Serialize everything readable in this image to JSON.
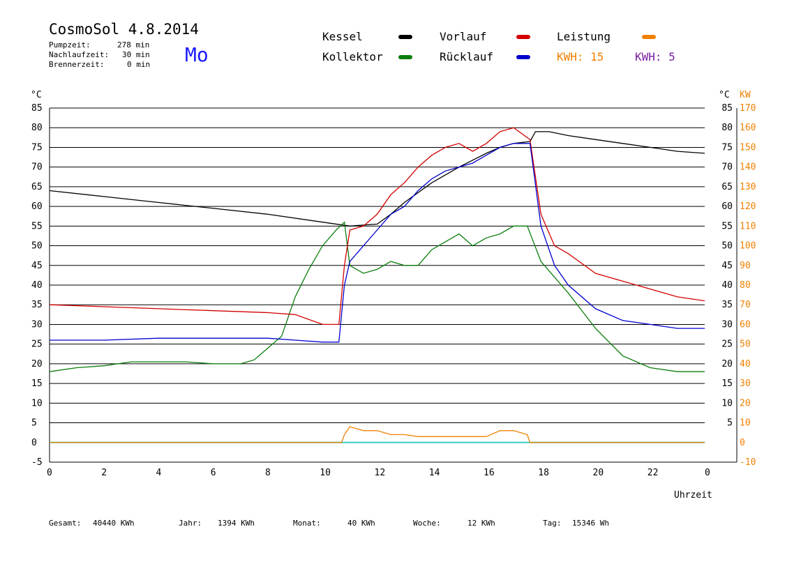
{
  "header": {
    "title": "CosmoSol 4.8.2014",
    "day": "Mo",
    "stats": [
      {
        "label": "Pumpzeit:",
        "value": "278 min"
      },
      {
        "label": "Nachlaufzeit:",
        "value": "30 min"
      },
      {
        "label": "Brennerzeit:",
        "value": "0 min"
      }
    ]
  },
  "legend": {
    "kessel": "Kessel",
    "kollektor": "Kollektor",
    "vorlauf": "Vorlauf",
    "ruecklauf": "Rücklauf",
    "leistung": "Leistung",
    "kwh1": "KWH: 15",
    "kwh2": "KWH: 5"
  },
  "colors": {
    "kessel": "#000000",
    "kollektor": "#0a7d0a",
    "vorlauf": "#d40000",
    "ruecklauf": "#0000cc",
    "leistung": "#f08000",
    "leistung2": "#7a1fa2",
    "baseline": "#33cccc",
    "day": "#1a1aff"
  },
  "footer": [
    {
      "label": "Gesamt:",
      "value": "40440 KWh"
    },
    {
      "label": "Jahr:",
      "value": "1394 KWh"
    },
    {
      "label": "Monat:",
      "value": "40 KWh"
    },
    {
      "label": "Woche:",
      "value": "12 KWh"
    },
    {
      "label": "Tag:",
      "value": "15346 Wh"
    }
  ],
  "chart_data": {
    "type": "line",
    "xlabel": "Uhrzeit",
    "ylabel_left": "°C",
    "ylabel_right_1": "°C",
    "ylabel_right_2": "KW",
    "xlim": [
      0,
      24
    ],
    "ylim": [
      -5,
      85
    ],
    "ylim_kw": [
      -10,
      170
    ],
    "x_ticks": [
      "0",
      "2",
      "4",
      "6",
      "8",
      "10",
      "12",
      "14",
      "16",
      "18",
      "20",
      "22",
      "0"
    ],
    "y_ticks": [
      "-5",
      "0",
      "5",
      "10",
      "15",
      "20",
      "25",
      "30",
      "35",
      "40",
      "45",
      "50",
      "55",
      "60",
      "65",
      "70",
      "75",
      "80",
      "85"
    ],
    "y_ticks_right": [
      "5",
      "10",
      "15",
      "20",
      "25",
      "30",
      "35",
      "40",
      "45",
      "50",
      "55",
      "60",
      "65",
      "70",
      "75",
      "80",
      "85"
    ],
    "kw_ticks": [
      "-10",
      "0",
      "10",
      "20",
      "30",
      "40",
      "50",
      "60",
      "70",
      "80",
      "90",
      "100",
      "110",
      "120",
      "130",
      "140",
      "150",
      "160",
      "170"
    ],
    "grid": true,
    "series": [
      {
        "name": "Kessel",
        "x": [
          0,
          2,
          4,
          6,
          8,
          10,
          11,
          12,
          12.5,
          13,
          14,
          15,
          16,
          16.5,
          17,
          17.6,
          17.8,
          18.3,
          19,
          20,
          21,
          22,
          23,
          24
        ],
        "y": [
          64,
          62.5,
          61,
          59.5,
          58,
          56,
          55,
          55.5,
          58,
          61,
          66,
          70,
          73.5,
          75,
          76,
          76.5,
          79,
          79,
          78,
          77,
          76,
          75,
          74,
          73.5
        ]
      },
      {
        "name": "Kollektor",
        "x": [
          0,
          1,
          2,
          3,
          4,
          5,
          6,
          7,
          7.5,
          8,
          8.5,
          9,
          9.5,
          10,
          10.5,
          10.8,
          11,
          11.5,
          12,
          12.5,
          13,
          13.5,
          14,
          14.5,
          15,
          15.5,
          16,
          16.5,
          17,
          17.5,
          18,
          18.5,
          19,
          20,
          21,
          22,
          23,
          24
        ],
        "y": [
          18,
          19,
          19.5,
          20.5,
          20.5,
          20.5,
          20,
          20,
          21,
          24,
          27,
          37,
          44,
          50,
          54,
          56,
          45,
          43,
          44,
          46,
          45,
          45,
          49,
          51,
          53,
          50,
          52,
          53,
          55,
          55,
          46,
          42,
          38,
          29,
          22,
          19,
          18,
          18
        ]
      },
      {
        "name": "Vorlauf",
        "x": [
          0,
          2,
          4,
          6,
          8,
          9,
          10,
          10.6,
          10.8,
          11,
          11.5,
          12,
          12.5,
          13,
          13.5,
          14,
          14.5,
          15,
          15.5,
          16,
          16.5,
          17,
          17.6,
          18,
          18.5,
          19,
          20,
          21,
          22,
          23,
          24
        ],
        "y": [
          35,
          34.5,
          34,
          33.5,
          33,
          32.5,
          30,
          30,
          45,
          54,
          55,
          58,
          63,
          66,
          70,
          73,
          75,
          76,
          74,
          76,
          79,
          80,
          77,
          58,
          50,
          48,
          43,
          41,
          39,
          37,
          36
        ]
      },
      {
        "name": "Rücklauf",
        "x": [
          0,
          2,
          4,
          6,
          8,
          9,
          10,
          10.6,
          10.8,
          11,
          11.5,
          12,
          12.5,
          13,
          13.5,
          14,
          14.5,
          15,
          15.5,
          16,
          16.5,
          17,
          17.6,
          18,
          18.5,
          19,
          20,
          21,
          22,
          23,
          24
        ],
        "y": [
          26,
          26,
          26.5,
          26.5,
          26.5,
          26,
          25.5,
          25.5,
          40,
          46,
          50,
          54,
          58,
          60,
          64,
          67,
          69,
          70,
          71,
          73,
          75,
          76,
          76,
          55,
          45,
          40,
          34,
          31,
          30,
          29,
          29
        ]
      },
      {
        "name": "Leistung",
        "x": [
          0,
          10.7,
          10.8,
          11,
          11.5,
          12,
          12.5,
          13,
          13.5,
          14,
          15,
          16,
          16.5,
          17,
          17.5,
          17.6,
          24
        ],
        "y": [
          0,
          0,
          2,
          4,
          3,
          3,
          2,
          2,
          1.5,
          1.5,
          1.5,
          1.5,
          3,
          3,
          2,
          0,
          0
        ]
      }
    ]
  }
}
